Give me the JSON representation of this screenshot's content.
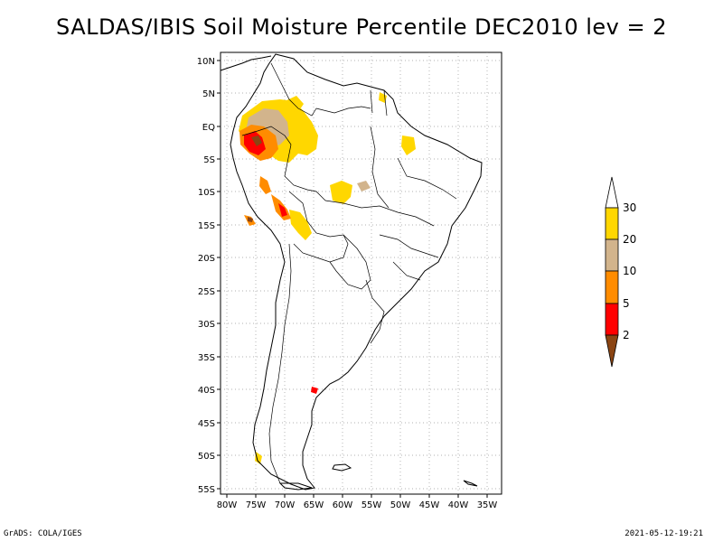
{
  "title": "SALDAS/IBIS Soil Moisture Percentile DEC2010 lev = 2",
  "map": {
    "lat_ticks": [
      "10N",
      "5N",
      "EQ",
      "5S",
      "10S",
      "15S",
      "20S",
      "25S",
      "30S",
      "35S",
      "40S",
      "45S",
      "50S",
      "55S"
    ],
    "lon_ticks": [
      "80W",
      "75W",
      "70W",
      "65W",
      "60W",
      "55W",
      "50W",
      "45W",
      "40W",
      "35W"
    ],
    "lon_range": [
      -81,
      -33
    ],
    "lat_range": [
      12,
      -56
    ],
    "grid": "dotted"
  },
  "colorbar": {
    "levels": [
      "2",
      "5",
      "10",
      "20",
      "30"
    ],
    "colors": [
      "#8b4513",
      "#ff0000",
      "#ff8c00",
      "#d2b48c",
      "#ffd700",
      "#ffffff"
    ],
    "extends": "both"
  },
  "footer": {
    "left": "GrADS: COLA/IGES",
    "right": "2021-05-12-19:21"
  }
}
